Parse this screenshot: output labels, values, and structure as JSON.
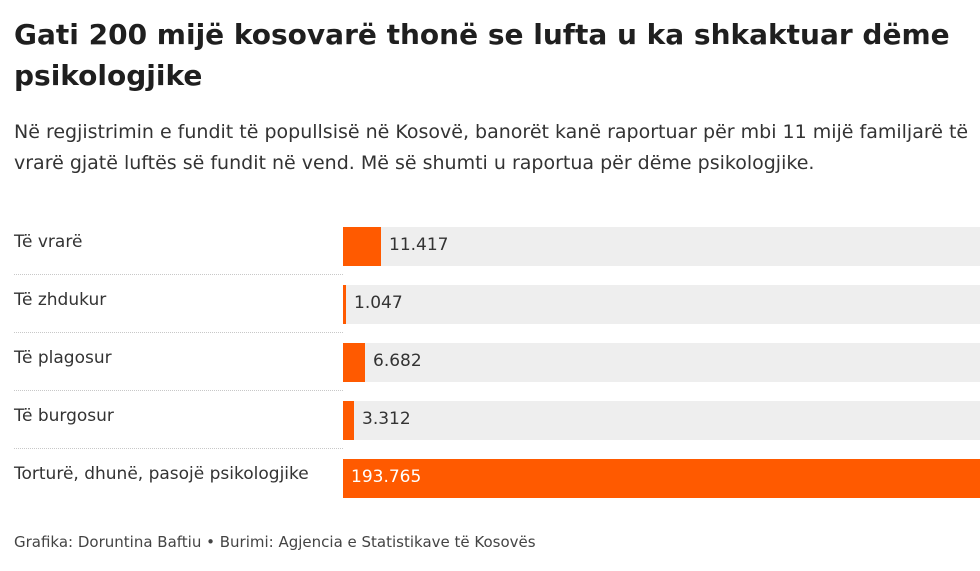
{
  "title": "Gati 200 mijë kosovarë thonë se lufta u ka shkaktuar dëme psikologjike",
  "subtitle": "Në regjistrimin e fundit të popullsisë në Kosovë, banorët kanë raportuar për mbi 11 mijë familjarë të vrarë gjatë luftës së fundit në vend. Më së shumti u raportua për dëme psikologjike.",
  "source": "Grafika: Doruntina Baftiu • Burimi: Agjencia e Statistikave të Kosovës",
  "colors": {
    "bar": "#ff5a00",
    "track": "#eeeeee"
  },
  "chart_data": {
    "type": "bar",
    "orientation": "horizontal",
    "categories": [
      "Të vrarë",
      "Të zhdukur",
      "Të plagosur",
      "Të burgosur",
      "Torturë, dhunë, pasojë psikologjike"
    ],
    "values": [
      11417,
      1047,
      6682,
      3312,
      193765
    ],
    "value_labels": [
      "11.417",
      "1.047",
      "6.682",
      "3.312",
      "193.765"
    ],
    "xlim": [
      0,
      193765
    ],
    "grid": false,
    "legend": "none"
  }
}
